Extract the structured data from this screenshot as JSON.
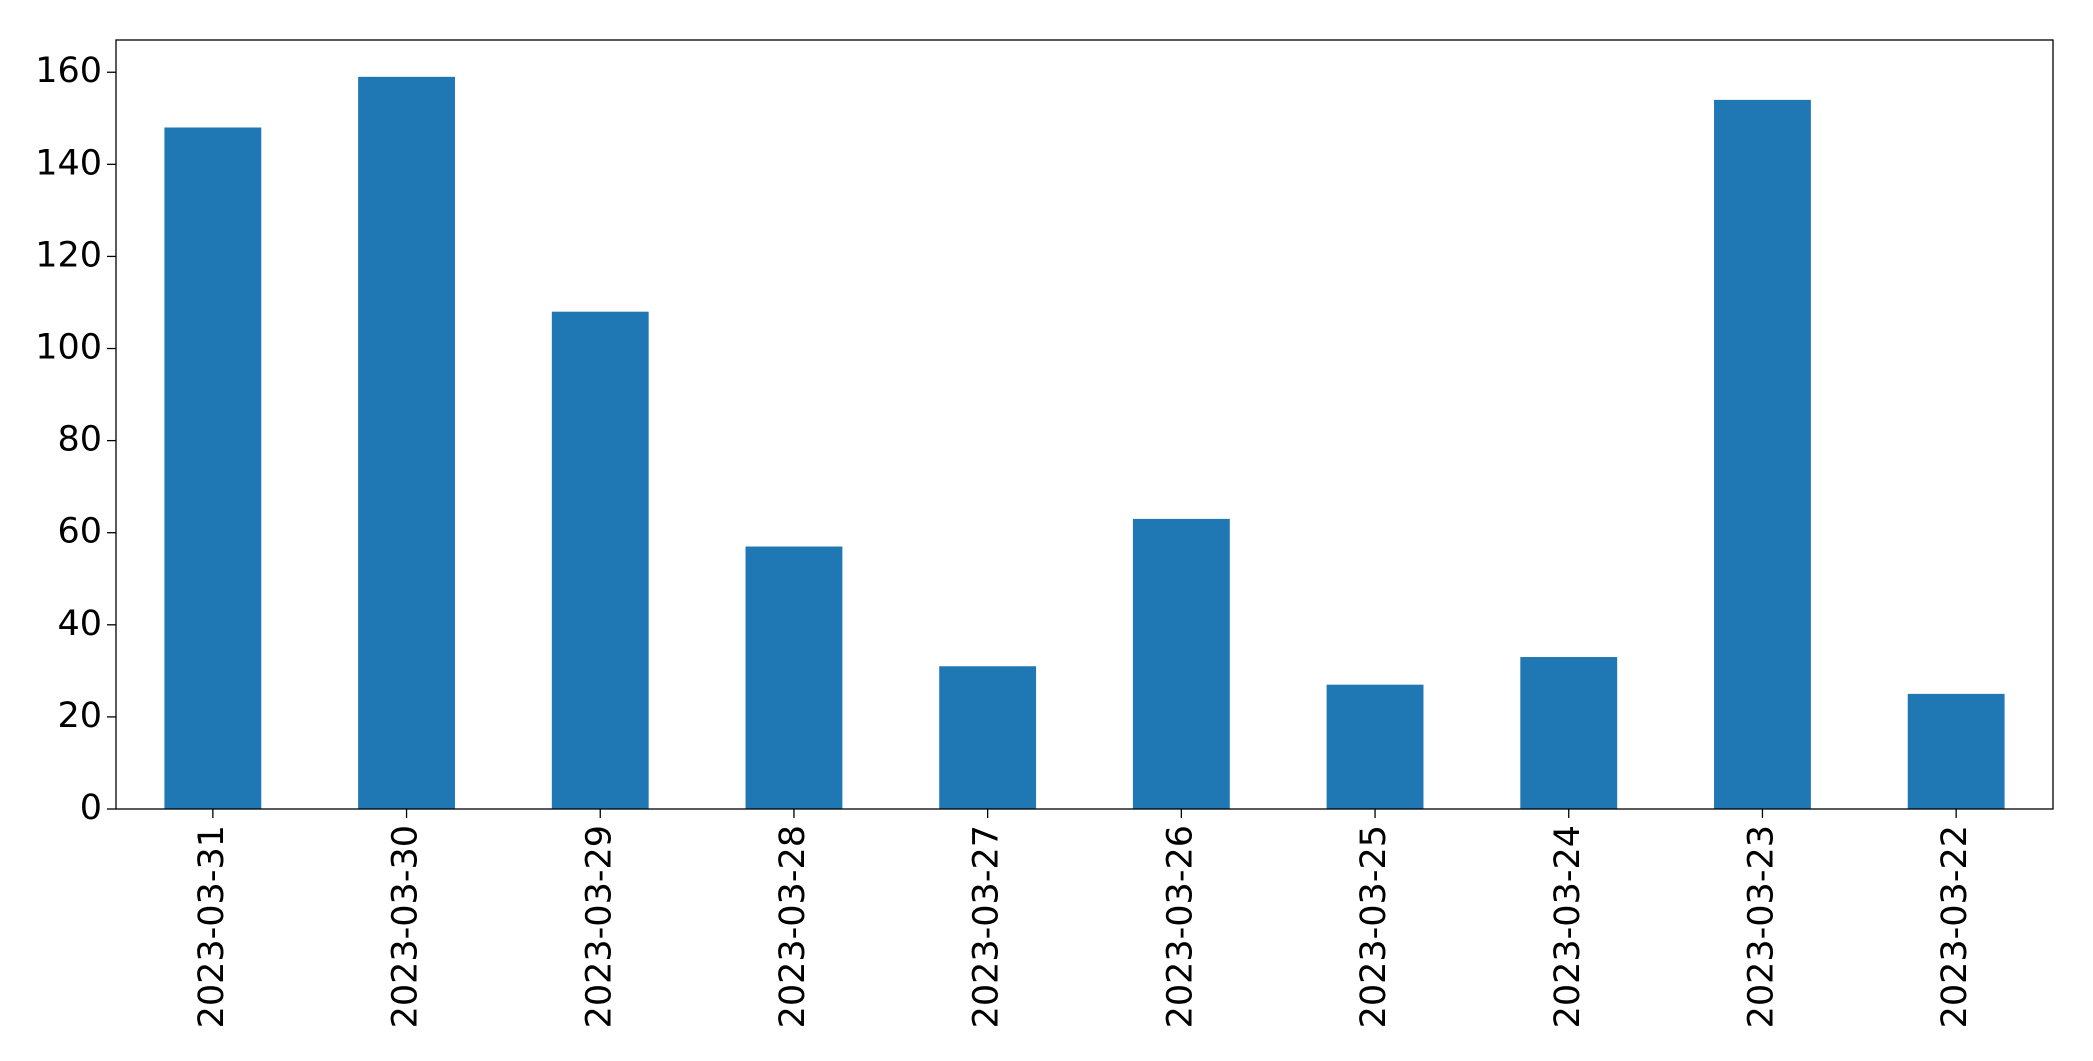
{
  "chart_data": {
    "type": "bar",
    "categories": [
      "2023-03-31",
      "2023-03-30",
      "2023-03-29",
      "2023-03-28",
      "2023-03-27",
      "2023-03-26",
      "2023-03-25",
      "2023-03-24",
      "2023-03-23",
      "2023-03-22"
    ],
    "values": [
      148,
      159,
      108,
      57,
      31,
      63,
      27,
      33,
      154,
      25
    ],
    "color": "#1f77b4",
    "ylim": [
      0,
      167
    ],
    "yticks": [
      0,
      20,
      40,
      60,
      80,
      100,
      120,
      140,
      160
    ],
    "grid": false
  }
}
